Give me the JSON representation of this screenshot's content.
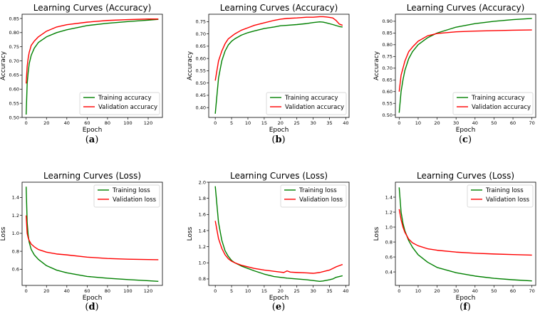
{
  "chart_data": [
    {
      "id": "a",
      "type": "line",
      "title": "Learning Curves (Accuracy)",
      "xlabel": "Epoch",
      "ylabel": "Accuracy",
      "xlim": [
        -4,
        134
      ],
      "ylim": [
        0.5,
        0.865
      ],
      "xticks": [
        0,
        20,
        40,
        60,
        80,
        100,
        120
      ],
      "yticks": [
        0.5,
        0.55,
        0.6,
        0.65,
        0.7,
        0.75,
        0.8,
        0.85
      ],
      "ytick_decimals": 2,
      "legend_position": "lower-right",
      "caption": "a",
      "series": [
        {
          "name": "Training accuracy",
          "color": "#008000",
          "x": [
            0,
            1,
            2,
            3,
            5,
            8,
            12,
            20,
            30,
            40,
            60,
            80,
            100,
            120,
            130
          ],
          "y": [
            0.51,
            0.62,
            0.66,
            0.69,
            0.72,
            0.745,
            0.765,
            0.785,
            0.8,
            0.81,
            0.825,
            0.833,
            0.839,
            0.844,
            0.847
          ]
        },
        {
          "name": "Validation accuracy",
          "color": "#ff0000",
          "x": [
            0,
            1,
            2,
            3,
            5,
            8,
            12,
            20,
            30,
            40,
            60,
            80,
            100,
            120,
            130
          ],
          "y": [
            0.62,
            0.68,
            0.71,
            0.73,
            0.755,
            0.77,
            0.785,
            0.805,
            0.82,
            0.828,
            0.837,
            0.843,
            0.846,
            0.848,
            0.848
          ]
        }
      ]
    },
    {
      "id": "b",
      "type": "line",
      "title": "Learning Curves (Accuracy)",
      "xlabel": "Epoch",
      "ylabel": "Accuracy",
      "xlim": [
        -2,
        41
      ],
      "ylim": [
        0.36,
        0.78
      ],
      "xticks": [
        0,
        5,
        10,
        15,
        20,
        25,
        30,
        35,
        40
      ],
      "yticks": [
        0.4,
        0.45,
        0.5,
        0.55,
        0.6,
        0.65,
        0.7,
        0.75
      ],
      "ytick_decimals": 2,
      "legend_position": "lower-right",
      "caption": "b",
      "series": [
        {
          "name": "Training accuracy",
          "color": "#008000",
          "x": [
            0,
            1,
            2,
            3,
            4,
            5,
            6,
            8,
            10,
            12,
            15,
            18,
            20,
            22,
            25,
            28,
            30,
            32,
            33,
            34,
            36,
            38,
            39
          ],
          "y": [
            0.375,
            0.52,
            0.59,
            0.63,
            0.655,
            0.67,
            0.68,
            0.695,
            0.705,
            0.712,
            0.722,
            0.728,
            0.733,
            0.735,
            0.738,
            0.742,
            0.746,
            0.749,
            0.748,
            0.745,
            0.738,
            0.73,
            0.728
          ]
        },
        {
          "name": "Validation accuracy",
          "color": "#ff0000",
          "x": [
            0,
            1,
            2,
            3,
            4,
            5,
            6,
            8,
            10,
            12,
            15,
            18,
            20,
            22,
            25,
            28,
            30,
            32,
            33,
            34,
            35,
            36,
            37,
            38,
            39
          ],
          "y": [
            0.51,
            0.59,
            0.63,
            0.66,
            0.68,
            0.69,
            0.7,
            0.715,
            0.725,
            0.735,
            0.745,
            0.755,
            0.76,
            0.763,
            0.765,
            0.768,
            0.768,
            0.77,
            0.77,
            0.769,
            0.767,
            0.765,
            0.755,
            0.74,
            0.735
          ]
        }
      ]
    },
    {
      "id": "c",
      "type": "line",
      "title": "Learning Curves (Accuracy)",
      "xlabel": "Epoch",
      "ylabel": "Accuracy",
      "xlim": [
        -2,
        72
      ],
      "ylim": [
        0.49,
        0.93
      ],
      "xticks": [
        0,
        10,
        20,
        30,
        40,
        50,
        60,
        70
      ],
      "yticks": [
        0.5,
        0.55,
        0.6,
        0.65,
        0.7,
        0.75,
        0.8,
        0.85,
        0.9
      ],
      "ytick_decimals": 2,
      "legend_position": "lower-right",
      "caption": "c",
      "series": [
        {
          "name": "Training accuracy",
          "color": "#008000",
          "x": [
            0,
            1,
            2,
            3,
            5,
            7,
            10,
            15,
            20,
            30,
            40,
            50,
            60,
            70
          ],
          "y": [
            0.51,
            0.6,
            0.65,
            0.69,
            0.74,
            0.77,
            0.8,
            0.83,
            0.85,
            0.875,
            0.89,
            0.9,
            0.907,
            0.912
          ]
        },
        {
          "name": "Validation accuracy",
          "color": "#ff0000",
          "x": [
            0,
            1,
            2,
            3,
            5,
            7,
            10,
            15,
            20,
            30,
            40,
            50,
            60,
            70
          ],
          "y": [
            0.6,
            0.67,
            0.7,
            0.73,
            0.77,
            0.79,
            0.815,
            0.838,
            0.848,
            0.855,
            0.858,
            0.86,
            0.862,
            0.863
          ]
        }
      ]
    },
    {
      "id": "d",
      "type": "line",
      "title": "Learning Curves (Loss)",
      "xlabel": "Epoch",
      "ylabel": "Loss",
      "xlim": [
        -4,
        134
      ],
      "ylim": [
        0.42,
        1.57
      ],
      "xticks": [
        0,
        20,
        40,
        60,
        80,
        100,
        120
      ],
      "yticks": [
        0.6,
        0.8,
        1.0,
        1.2,
        1.4
      ],
      "ytick_decimals": 1,
      "legend_position": "upper-right",
      "caption": "d",
      "series": [
        {
          "name": "Training loss",
          "color": "#008000",
          "x": [
            0,
            1,
            2,
            3,
            5,
            8,
            12,
            20,
            30,
            40,
            60,
            80,
            100,
            120,
            130
          ],
          "y": [
            1.52,
            1.12,
            0.98,
            0.9,
            0.82,
            0.76,
            0.71,
            0.64,
            0.59,
            0.56,
            0.52,
            0.5,
            0.485,
            0.472,
            0.465
          ]
        },
        {
          "name": "Validation loss",
          "color": "#ff0000",
          "x": [
            0,
            1,
            2,
            3,
            5,
            8,
            12,
            20,
            30,
            40,
            60,
            80,
            100,
            120,
            130
          ],
          "y": [
            1.2,
            1.0,
            0.95,
            0.92,
            0.88,
            0.85,
            0.82,
            0.79,
            0.77,
            0.76,
            0.735,
            0.72,
            0.712,
            0.708,
            0.706
          ]
        }
      ]
    },
    {
      "id": "e",
      "type": "line",
      "title": "Learning Curves (Loss)",
      "xlabel": "Epoch",
      "ylabel": "Loss",
      "xlim": [
        -2,
        41
      ],
      "ylim": [
        0.72,
        2.0
      ],
      "xticks": [
        0,
        5,
        10,
        15,
        20,
        25,
        30,
        35,
        40
      ],
      "yticks": [
        0.8,
        1.0,
        1.2,
        1.4,
        1.6,
        1.8,
        2.0
      ],
      "ytick_decimals": 1,
      "legend_position": "upper-right",
      "caption": "e",
      "series": [
        {
          "name": "Training loss",
          "color": "#008000",
          "x": [
            0,
            1,
            2,
            3,
            4,
            5,
            6,
            8,
            10,
            12,
            15,
            18,
            20,
            22,
            25,
            28,
            30,
            32,
            33,
            35,
            36,
            37,
            38,
            39
          ],
          "y": [
            1.95,
            1.5,
            1.28,
            1.15,
            1.08,
            1.03,
            1.0,
            0.96,
            0.93,
            0.9,
            0.86,
            0.83,
            0.82,
            0.81,
            0.8,
            0.79,
            0.78,
            0.77,
            0.775,
            0.79,
            0.8,
            0.82,
            0.83,
            0.84
          ]
        },
        {
          "name": "Validation loss",
          "color": "#ff0000",
          "x": [
            0,
            1,
            2,
            3,
            4,
            5,
            6,
            8,
            10,
            12,
            15,
            18,
            20,
            21,
            22,
            23,
            25,
            28,
            30,
            32,
            34,
            35,
            36,
            37,
            38,
            39
          ],
          "y": [
            1.52,
            1.3,
            1.18,
            1.1,
            1.05,
            1.02,
            1.0,
            0.97,
            0.95,
            0.93,
            0.91,
            0.895,
            0.885,
            0.88,
            0.9,
            0.885,
            0.88,
            0.875,
            0.87,
            0.88,
            0.9,
            0.91,
            0.93,
            0.95,
            0.965,
            0.98
          ]
        }
      ]
    },
    {
      "id": "f",
      "type": "line",
      "title": "Learning Curves (Loss)",
      "xlabel": "Epoch",
      "ylabel": "Loss",
      "xlim": [
        -2,
        72
      ],
      "ylim": [
        0.22,
        1.6
      ],
      "xticks": [
        0,
        10,
        20,
        30,
        40,
        50,
        60,
        70
      ],
      "yticks": [
        0.4,
        0.6,
        0.8,
        1.0,
        1.2,
        1.4
      ],
      "ytick_decimals": 1,
      "legend_position": "upper-right",
      "caption": "f",
      "series": [
        {
          "name": "Training loss",
          "color": "#008000",
          "x": [
            0,
            1,
            2,
            3,
            5,
            7,
            10,
            15,
            20,
            30,
            40,
            50,
            60,
            70
          ],
          "y": [
            1.53,
            1.2,
            1.05,
            0.95,
            0.82,
            0.73,
            0.63,
            0.53,
            0.46,
            0.39,
            0.345,
            0.315,
            0.295,
            0.28
          ]
        },
        {
          "name": "Validation loss",
          "color": "#ff0000",
          "x": [
            0,
            1,
            2,
            3,
            5,
            7,
            10,
            15,
            20,
            30,
            40,
            50,
            60,
            70
          ],
          "y": [
            1.24,
            1.1,
            1.0,
            0.93,
            0.84,
            0.79,
            0.75,
            0.71,
            0.69,
            0.665,
            0.65,
            0.64,
            0.632,
            0.625
          ]
        }
      ]
    }
  ]
}
